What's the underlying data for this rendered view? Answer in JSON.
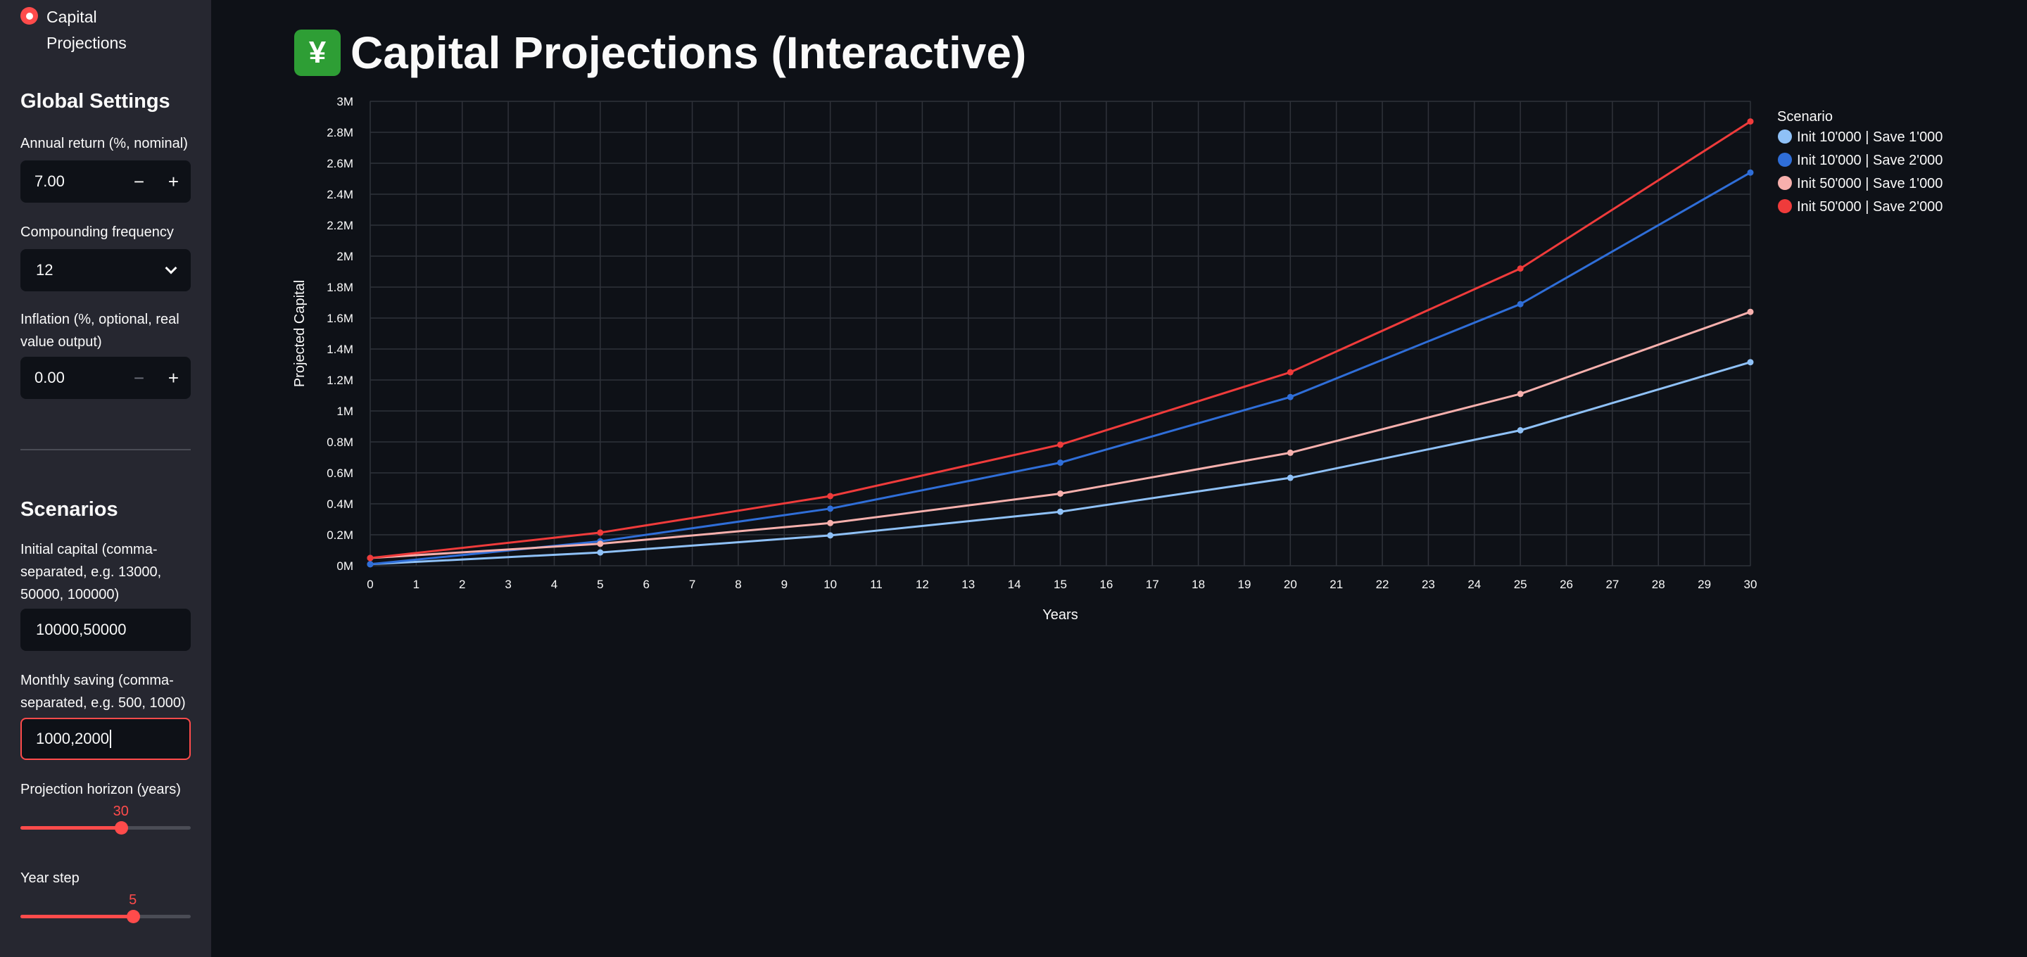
{
  "sidebar": {
    "nav": {
      "label": "Capital Projections"
    },
    "global_heading": "Global Settings",
    "annual_return": {
      "label": "Annual return (%, nominal)",
      "value": "7.00",
      "minus": "−",
      "plus": "+"
    },
    "compounding": {
      "label": "Compounding frequency",
      "value": "12"
    },
    "inflation": {
      "label": "Inflation (%, optional, real value output)",
      "value": "0.00",
      "minus": "−",
      "plus": "+"
    },
    "scenarios_heading": "Scenarios",
    "initial_capital": {
      "label": "Initial capital (comma-separated, e.g. 13000, 50000, 100000)",
      "value": "10000,50000"
    },
    "monthly_saving": {
      "label": "Monthly saving (comma-separated, e.g. 500, 1000)",
      "value": "1000,2000"
    },
    "horizon": {
      "label": "Projection horizon (years)",
      "value": "30",
      "fraction": 0.59
    },
    "year_step": {
      "label": "Year step",
      "value": "5",
      "fraction": 0.66
    }
  },
  "main": {
    "title": "Capital Projections (Interactive)",
    "title_emoji": "¥"
  },
  "chart_data": {
    "type": "line",
    "xlabel": "Years",
    "ylabel": "Projected Capital",
    "xlim": [
      0,
      30
    ],
    "ylim": [
      0,
      3000000
    ],
    "x_ticks": [
      0,
      1,
      2,
      3,
      4,
      5,
      6,
      7,
      8,
      9,
      10,
      11,
      12,
      13,
      14,
      15,
      16,
      17,
      18,
      19,
      20,
      21,
      22,
      23,
      24,
      25,
      26,
      27,
      28,
      29,
      30
    ],
    "y_ticks": [
      0,
      200000,
      400000,
      600000,
      800000,
      1000000,
      1200000,
      1400000,
      1600000,
      1800000,
      2000000,
      2200000,
      2400000,
      2600000,
      2800000,
      3000000
    ],
    "y_tick_labels": [
      "0M",
      "0.2M",
      "0.4M",
      "0.6M",
      "0.8M",
      "1M",
      "1.2M",
      "1.4M",
      "1.6M",
      "1.8M",
      "2M",
      "2.2M",
      "2.4M",
      "2.6M",
      "2.8M",
      "3M"
    ],
    "grid": true,
    "legend_title": "Scenario",
    "legend_position": "right",
    "x": [
      0,
      5,
      10,
      15,
      20,
      25,
      30
    ],
    "series": [
      {
        "name": "Init 10'000 | Save 1'000",
        "color": "#8fc1f7",
        "values": [
          10000,
          86000,
          196000,
          349000,
          568000,
          875000,
          1315000
        ]
      },
      {
        "name": "Init 10'000 | Save 2'000",
        "color": "#2f6ed8",
        "values": [
          10000,
          158000,
          369000,
          666000,
          1090000,
          1690000,
          2540000
        ]
      },
      {
        "name": "Init 50'000 | Save 1'000",
        "color": "#f7b0ad",
        "values": [
          50000,
          142000,
          276000,
          466000,
          730000,
          1110000,
          1640000
        ]
      },
      {
        "name": "Init 50'000 | Save 2'000",
        "color": "#ef3b3b",
        "values": [
          50000,
          214000,
          450000,
          782000,
          1250000,
          1920000,
          2870000
        ]
      }
    ]
  }
}
